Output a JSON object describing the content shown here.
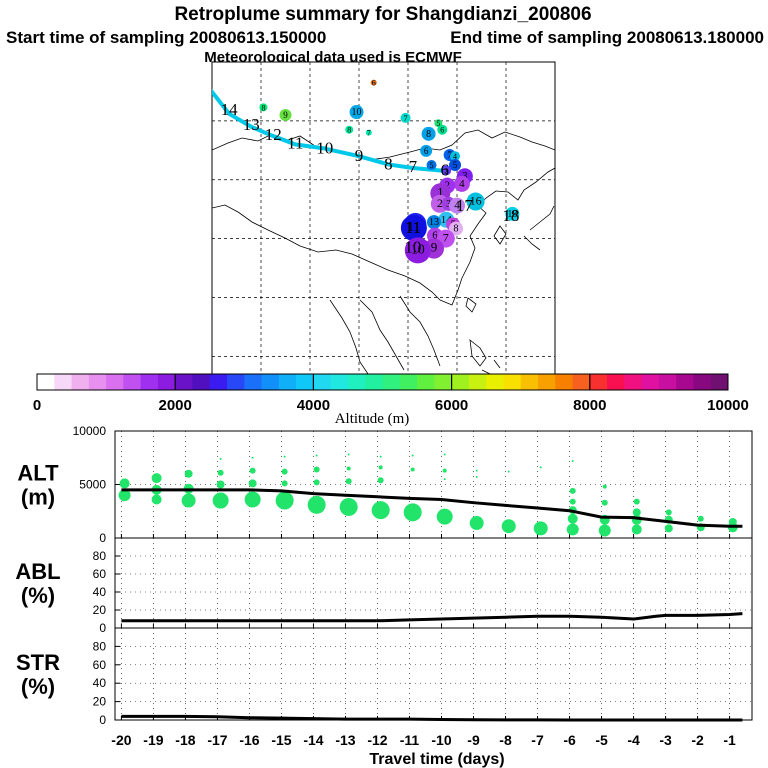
{
  "header": {
    "title": "Retroplume summary for Shangdianzi_200806",
    "start_label": "Start time of sampling 20080613.150000",
    "end_label": "End time of sampling 20080613.180000",
    "met_label": "Meteorological data used is ECMWF"
  },
  "map": {
    "trajectory_color": "#00c8e8",
    "labels": [
      {
        "t": "14",
        "lon": 73.5,
        "lat": 52.0,
        "size": "large"
      },
      {
        "t": "13",
        "lon": 78.0,
        "lat": 49.5,
        "size": "large"
      },
      {
        "t": "12",
        "lon": 82.5,
        "lat": 47.8,
        "size": "large"
      },
      {
        "t": "11",
        "lon": 87.0,
        "lat": 46.3,
        "size": "large"
      },
      {
        "t": "10",
        "lon": 93.0,
        "lat": 45.5,
        "size": "large"
      },
      {
        "t": "9",
        "lon": 100.0,
        "lat": 44.2,
        "size": "large"
      },
      {
        "t": "8",
        "lon": 106.0,
        "lat": 42.8,
        "size": "large"
      },
      {
        "t": "7",
        "lon": 111.0,
        "lat": 42.3,
        "size": "large"
      },
      {
        "t": "6",
        "lon": 117.5,
        "lat": 41.7,
        "size": "large"
      },
      {
        "t": "17",
        "lon": 121.5,
        "lat": 35.7,
        "size": "large"
      },
      {
        "t": "18",
        "lon": 131.0,
        "lat": 34.0,
        "size": "large"
      },
      {
        "t": "11",
        "lon": 111.0,
        "lat": 32.0,
        "size": "large"
      },
      {
        "t": "10",
        "lon": 111.0,
        "lat": 28.7,
        "size": "large"
      }
    ],
    "dots": [
      {
        "n": "6",
        "lon": 103.0,
        "lat": 56.5,
        "r": 3,
        "color": "#e07020"
      },
      {
        "n": "8",
        "lon": 80.5,
        "lat": 52.3,
        "r": 4,
        "color": "#00e878"
      },
      {
        "n": "9",
        "lon": 85.0,
        "lat": 51.0,
        "r": 6,
        "color": "#66e040"
      },
      {
        "n": "10",
        "lon": 99.5,
        "lat": 51.5,
        "r": 7,
        "color": "#00a8e8"
      },
      {
        "n": "7",
        "lon": 109.5,
        "lat": 50.5,
        "r": 5,
        "color": "#00d8c8"
      },
      {
        "n": "5",
        "lon": 116.2,
        "lat": 49.6,
        "r": 4,
        "color": "#22e070"
      },
      {
        "n": "8",
        "lon": 98.0,
        "lat": 48.5,
        "r": 4,
        "color": "#00e8a0"
      },
      {
        "n": "7",
        "lon": 102.0,
        "lat": 48.0,
        "r": 3,
        "color": "#00e8b0"
      },
      {
        "n": "8",
        "lon": 114.2,
        "lat": 47.8,
        "r": 7,
        "color": "#00a0e8"
      },
      {
        "n": "6",
        "lon": 117.0,
        "lat": 48.5,
        "r": 5,
        "color": "#00e090"
      },
      {
        "n": "6",
        "lon": 113.7,
        "lat": 44.9,
        "r": 6,
        "color": "#00a0e8"
      },
      {
        "n": "7",
        "lon": 118.5,
        "lat": 44.2,
        "r": 6,
        "color": "#0060e8"
      },
      {
        "n": "4",
        "lon": 119.6,
        "lat": 44.0,
        "r": 5,
        "color": "#00c0e0"
      },
      {
        "n": "5",
        "lon": 114.8,
        "lat": 42.5,
        "r": 5,
        "color": "#0070e0"
      },
      {
        "n": "5",
        "lon": 119.6,
        "lat": 42.5,
        "r": 6,
        "color": "#0050e0"
      },
      {
        "n": "2",
        "lon": 117.8,
        "lat": 41.6,
        "r": 5,
        "color": "#6040ff"
      },
      {
        "n": "3",
        "lon": 121.6,
        "lat": 40.6,
        "r": 8,
        "color": "#8020f0"
      },
      {
        "n": "4",
        "lon": 121.0,
        "lat": 39.3,
        "r": 8,
        "color": "#b040e8"
      },
      {
        "n": "2",
        "lon": 118.0,
        "lat": 39.0,
        "r": 8,
        "color": "#a030f0"
      },
      {
        "n": "1",
        "lon": 116.6,
        "lat": 37.7,
        "r": 10,
        "color": "#9a30d8"
      },
      {
        "n": "2",
        "lon": 116.5,
        "lat": 35.9,
        "r": 9,
        "color": "#c060e8"
      },
      {
        "n": "3",
        "lon": 118.3,
        "lat": 35.9,
        "r": 7,
        "color": "#a040e0"
      },
      {
        "n": "4",
        "lon": 120.0,
        "lat": 35.6,
        "r": 8,
        "color": "#c080f0"
      },
      {
        "n": "16",
        "lon": 123.8,
        "lat": 36.3,
        "r": 9,
        "color": "#00c0e0"
      },
      {
        "n": "18",
        "lon": 131.3,
        "lat": 34.2,
        "r": 7,
        "color": "#00d0e8"
      },
      {
        "n": "14",
        "lon": 117.8,
        "lat": 33.2,
        "r": 8,
        "color": "#30c0f0"
      },
      {
        "n": "13",
        "lon": 115.3,
        "lat": 32.8,
        "r": 7,
        "color": "#0080e0"
      },
      {
        "n": "5",
        "lon": 119.2,
        "lat": 32.4,
        "r": 7,
        "color": "#c040e0"
      },
      {
        "n": "12",
        "lon": 111.5,
        "lat": 32.5,
        "r": 11,
        "color": "#2020f0"
      },
      {
        "n": "8",
        "lon": 119.8,
        "lat": 31.7,
        "r": 7,
        "color": "#e0b0f0"
      },
      {
        "n": "11",
        "lon": 111.2,
        "lat": 31.8,
        "r": 13,
        "color": "#1010e0"
      },
      {
        "n": "6",
        "lon": 115.5,
        "lat": 30.5,
        "r": 8,
        "color": "#b040e8"
      },
      {
        "n": "7",
        "lon": 117.7,
        "lat": 30.0,
        "r": 9,
        "color": "#c050f0"
      },
      {
        "n": "9",
        "lon": 115.3,
        "lat": 28.3,
        "r": 10,
        "color": "#a030d8"
      },
      {
        "n": "10",
        "lon": 112.0,
        "lat": 28.0,
        "r": 13,
        "color": "#8c1ce0"
      }
    ]
  },
  "colorbar": {
    "ticks": [
      "0",
      "2000",
      "4000",
      "6000",
      "8000",
      "10000"
    ],
    "label": "Altitude (m)",
    "colors": [
      "#ffffff",
      "#f8d8f8",
      "#f0b0f0",
      "#e890f0",
      "#d870f0",
      "#c050f0",
      "#a030f0",
      "#8c1ce0",
      "#6a12c8",
      "#5010c0",
      "#3a1cf0",
      "#2848f8",
      "#1a70f8",
      "#1090f8",
      "#10b0f8",
      "#10c8f8",
      "#20d8f0",
      "#20e8e0",
      "#20f0c0",
      "#20f0a0",
      "#30f080",
      "#40f060",
      "#60f040",
      "#80f030",
      "#a0f020",
      "#c8f010",
      "#e8f000",
      "#f8e000",
      "#f8c000",
      "#f8a000",
      "#f88000",
      "#f86020",
      "#f83030",
      "#f81050",
      "#f01080",
      "#e010a0",
      "#c810a0",
      "#a80890",
      "#880880",
      "#701070"
    ]
  },
  "chart_data": {
    "type": "line",
    "xlabel": "Travel time (days)",
    "x_ticks": [
      "-20",
      "-19",
      "-18",
      "-17",
      "-16",
      "-15",
      "-14",
      "-13",
      "-12",
      "-11",
      "-10",
      "-9",
      "-8",
      "-7",
      "-6",
      "-5",
      "-4",
      "-3",
      "-2",
      "-1"
    ],
    "xlim": [
      -20.2,
      -0.3
    ],
    "panels": [
      {
        "name": "ALT",
        "ylabel": "ALT",
        "unit": "(m)",
        "y_ticks": [
          "10000",
          "5000",
          "0"
        ],
        "ylim": [
          0,
          10000
        ],
        "line": {
          "x": [
            -20,
            -19,
            -18,
            -17,
            -16,
            -15,
            -14,
            -13,
            -12,
            -11,
            -10,
            -9,
            -8,
            -7,
            -6,
            -5,
            -4,
            -3,
            -2,
            -1,
            -0.6
          ],
          "y": [
            4500,
            4500,
            4500,
            4500,
            4500,
            4400,
            4150,
            4000,
            3850,
            3700,
            3600,
            3300,
            3050,
            2800,
            2550,
            1950,
            1900,
            1550,
            1200,
            1100,
            1100
          ]
        },
        "dot_color": "#22e46a",
        "dots": [
          {
            "x": -19.9,
            "y": 5100,
            "s": 5
          },
          {
            "x": -19.9,
            "y": 4000,
            "s": 6
          },
          {
            "x": -18.9,
            "y": 5600,
            "s": 5
          },
          {
            "x": -18.9,
            "y": 4500,
            "s": 5
          },
          {
            "x": -18.9,
            "y": 3600,
            "s": 5
          },
          {
            "x": -17.9,
            "y": 6000,
            "s": 4
          },
          {
            "x": -17.9,
            "y": 4600,
            "s": 5
          },
          {
            "x": -17.9,
            "y": 3500,
            "s": 7
          },
          {
            "x": -16.9,
            "y": 7400,
            "s": 1
          },
          {
            "x": -16.9,
            "y": 6100,
            "s": 3
          },
          {
            "x": -16.9,
            "y": 5000,
            "s": 4
          },
          {
            "x": -16.9,
            "y": 3500,
            "s": 8
          },
          {
            "x": -15.9,
            "y": 7500,
            "s": 1
          },
          {
            "x": -15.9,
            "y": 6300,
            "s": 3
          },
          {
            "x": -15.9,
            "y": 5100,
            "s": 4
          },
          {
            "x": -15.9,
            "y": 3600,
            "s": 8
          },
          {
            "x": -14.9,
            "y": 7600,
            "s": 1
          },
          {
            "x": -14.9,
            "y": 6200,
            "s": 3
          },
          {
            "x": -14.9,
            "y": 5100,
            "s": 3
          },
          {
            "x": -14.9,
            "y": 3500,
            "s": 9
          },
          {
            "x": -13.9,
            "y": 7700,
            "s": 1
          },
          {
            "x": -13.9,
            "y": 6400,
            "s": 3
          },
          {
            "x": -13.9,
            "y": 5200,
            "s": 3
          },
          {
            "x": -13.9,
            "y": 3100,
            "s": 9
          },
          {
            "x": -12.9,
            "y": 7800,
            "s": 1
          },
          {
            "x": -12.9,
            "y": 6500,
            "s": 2
          },
          {
            "x": -12.9,
            "y": 5300,
            "s": 3
          },
          {
            "x": -12.9,
            "y": 2900,
            "s": 9
          },
          {
            "x": -11.9,
            "y": 7600,
            "s": 1
          },
          {
            "x": -11.9,
            "y": 6600,
            "s": 2
          },
          {
            "x": -11.9,
            "y": 5400,
            "s": 3
          },
          {
            "x": -11.9,
            "y": 2600,
            "s": 9
          },
          {
            "x": -10.9,
            "y": 7700,
            "s": 1
          },
          {
            "x": -10.9,
            "y": 6400,
            "s": 2
          },
          {
            "x": -10.9,
            "y": 2400,
            "s": 9
          },
          {
            "x": -9.9,
            "y": 7800,
            "s": 1
          },
          {
            "x": -9.9,
            "y": 6300,
            "s": 2
          },
          {
            "x": -9.9,
            "y": 5500,
            "s": 1
          },
          {
            "x": -9.9,
            "y": 2000,
            "s": 8
          },
          {
            "x": -8.9,
            "y": 6300,
            "s": 1
          },
          {
            "x": -8.9,
            "y": 5700,
            "s": 1
          },
          {
            "x": -8.9,
            "y": 1400,
            "s": 7
          },
          {
            "x": -7.9,
            "y": 6200,
            "s": 1
          },
          {
            "x": -7.9,
            "y": 1100,
            "s": 7
          },
          {
            "x": -6.9,
            "y": 6600,
            "s": 1
          },
          {
            "x": -6.9,
            "y": 900,
            "s": 7
          },
          {
            "x": -5.9,
            "y": 7200,
            "s": 1
          },
          {
            "x": -5.9,
            "y": 4400,
            "s": 3
          },
          {
            "x": -5.9,
            "y": 3400,
            "s": 3
          },
          {
            "x": -5.9,
            "y": 2600,
            "s": 4
          },
          {
            "x": -5.9,
            "y": 1800,
            "s": 5
          },
          {
            "x": -5.9,
            "y": 800,
            "s": 6
          },
          {
            "x": -4.9,
            "y": 4800,
            "s": 2
          },
          {
            "x": -4.9,
            "y": 3300,
            "s": 3
          },
          {
            "x": -4.9,
            "y": 1700,
            "s": 5
          },
          {
            "x": -4.9,
            "y": 700,
            "s": 6
          },
          {
            "x": -3.9,
            "y": 3400,
            "s": 3
          },
          {
            "x": -3.9,
            "y": 2400,
            "s": 4
          },
          {
            "x": -3.9,
            "y": 1700,
            "s": 5
          },
          {
            "x": -3.9,
            "y": 800,
            "s": 5
          },
          {
            "x": -2.9,
            "y": 2400,
            "s": 3
          },
          {
            "x": -2.9,
            "y": 1700,
            "s": 4
          },
          {
            "x": -2.9,
            "y": 900,
            "s": 4
          },
          {
            "x": -1.9,
            "y": 1800,
            "s": 3
          },
          {
            "x": -1.9,
            "y": 1000,
            "s": 4
          },
          {
            "x": -0.9,
            "y": 1500,
            "s": 4
          },
          {
            "x": -0.9,
            "y": 1000,
            "s": 5
          }
        ]
      },
      {
        "name": "ABL",
        "ylabel": "ABL",
        "unit": "(%)",
        "y_ticks": [
          "80",
          "60",
          "40",
          "20",
          "0"
        ],
        "ylim": [
          0,
          100
        ],
        "line": {
          "x": [
            -20,
            -19,
            -18,
            -17,
            -16,
            -15,
            -14,
            -13,
            -12,
            -11,
            -10,
            -9,
            -8,
            -7,
            -6,
            -5,
            -4,
            -3.3,
            -3,
            -2,
            -1,
            -0.6
          ],
          "y": [
            8,
            8,
            8,
            8,
            8,
            8,
            8,
            8,
            8,
            9,
            10,
            11,
            12,
            13,
            13,
            12,
            10,
            13,
            14,
            14,
            15,
            16
          ]
        }
      },
      {
        "name": "STR",
        "ylabel": "STR",
        "unit": "(%)",
        "y_ticks": [
          "80",
          "60",
          "40",
          "20",
          "0"
        ],
        "ylim": [
          0,
          100
        ],
        "line": {
          "x": [
            -20,
            -19,
            -18,
            -17,
            -16,
            -15,
            -14,
            -13,
            -12,
            -11,
            -10,
            -9,
            -8,
            -7,
            -6,
            -5,
            -4,
            -3,
            -2,
            -1,
            -0.6
          ],
          "y": [
            4,
            4,
            4,
            3.5,
            2.5,
            2,
            1.5,
            1,
            1,
            1,
            0.5,
            0.3,
            0.2,
            0.1,
            0,
            0,
            0,
            0,
            0,
            0,
            0
          ]
        }
      }
    ]
  }
}
